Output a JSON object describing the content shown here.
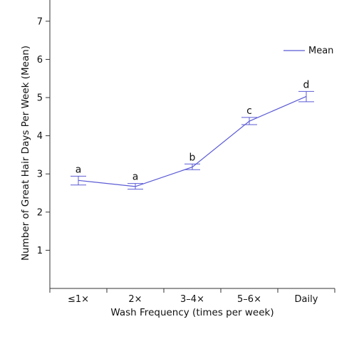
{
  "chart_data": {
    "type": "line",
    "title": "",
    "xlabel": "Wash Frequency (times per week)",
    "ylabel": "Number of Great Hair Days Per Week (Mean)",
    "categories": [
      "≤1×",
      "2×",
      "3–4×",
      "5–6×",
      "Daily"
    ],
    "series": [
      {
        "name": "Mean",
        "values": [
          2.83,
          2.67,
          3.18,
          4.38,
          5.03
        ],
        "error_low": [
          2.71,
          2.6,
          3.11,
          4.29,
          4.89
        ],
        "error_high": [
          2.94,
          2.75,
          3.26,
          4.48,
          5.16
        ],
        "significance": [
          "a",
          "a",
          "b",
          "c",
          "d"
        ]
      }
    ],
    "ylim": [
      0,
      7.6
    ],
    "yticks": [
      1,
      2,
      3,
      4,
      5,
      6,
      7
    ],
    "grid": false,
    "legend_position": "top-right",
    "colors": {
      "line": "#5b5bd6",
      "axis": "#333333"
    }
  }
}
